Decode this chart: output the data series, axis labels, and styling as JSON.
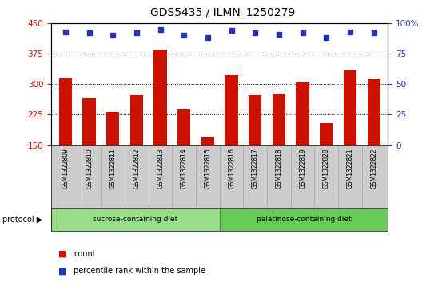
{
  "title": "GDS5435 / ILMN_1250279",
  "samples": [
    "GSM1322809",
    "GSM1322810",
    "GSM1322811",
    "GSM1322812",
    "GSM1322813",
    "GSM1322814",
    "GSM1322815",
    "GSM1322816",
    "GSM1322817",
    "GSM1322818",
    "GSM1322819",
    "GSM1322820",
    "GSM1322821",
    "GSM1322822"
  ],
  "counts": [
    315,
    265,
    232,
    272,
    385,
    238,
    168,
    322,
    272,
    275,
    305,
    205,
    333,
    312
  ],
  "percentiles": [
    93,
    92,
    90,
    92,
    95,
    90,
    88,
    94,
    92,
    91,
    92,
    88,
    93,
    92
  ],
  "ylim_left": [
    150,
    450
  ],
  "ylim_right": [
    0,
    100
  ],
  "yticks_left": [
    150,
    225,
    300,
    375,
    450
  ],
  "yticks_right": [
    0,
    25,
    50,
    75,
    100
  ],
  "ytick_right_labels": [
    "0",
    "25",
    "50",
    "75",
    "100%"
  ],
  "bar_color": "#cc1100",
  "dot_color": "#2233bb",
  "plot_bg": "#ffffff",
  "grid_color": "#000000",
  "sucrose_color": "#99dd88",
  "palatinose_color": "#66cc55",
  "sample_bg": "#cccccc",
  "sucrose_label": "sucrose-containing diet",
  "palatinose_label": "palatinose-containing diet",
  "protocol_label": "protocol",
  "sucrose_count": 7,
  "palatinose_count": 7,
  "legend_count_label": "count",
  "legend_percentile_label": "percentile rank within the sample",
  "title_fontsize": 10,
  "tick_fontsize": 7.5,
  "bar_width": 0.55
}
